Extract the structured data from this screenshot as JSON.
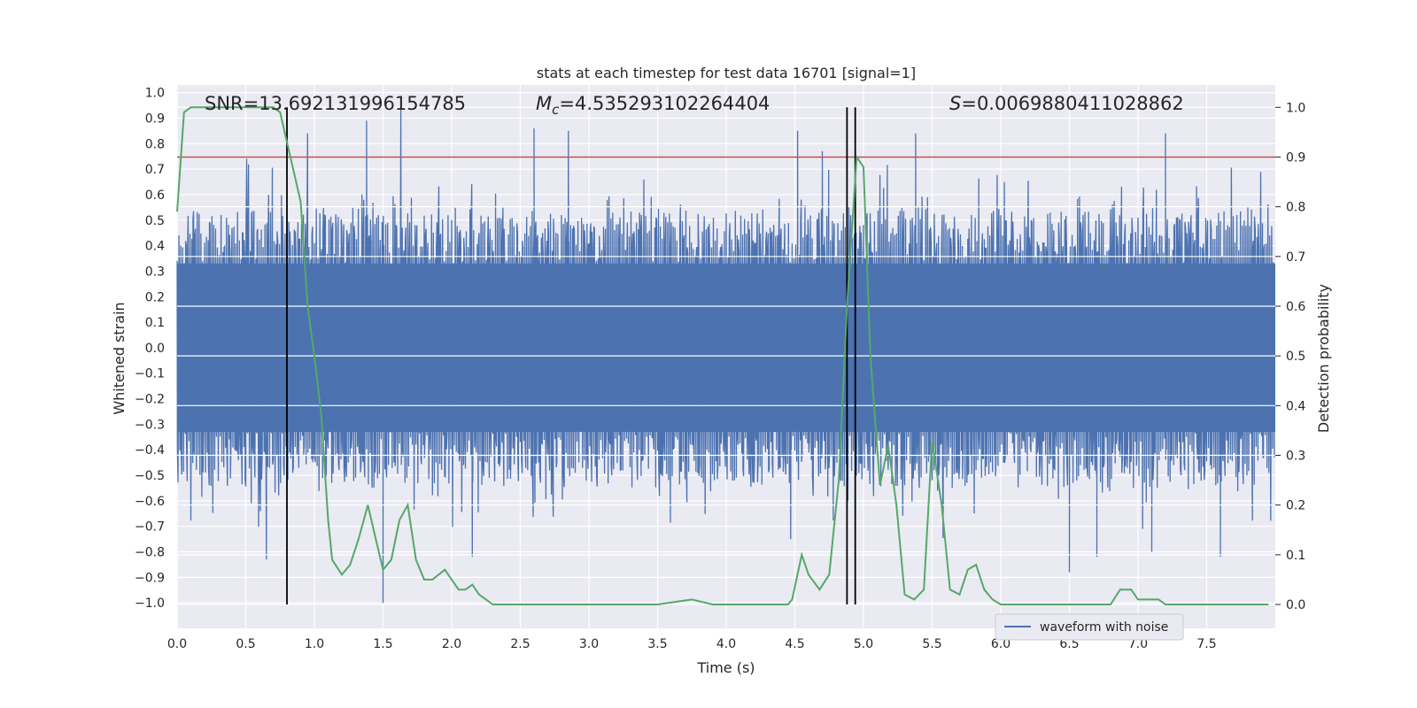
{
  "chart_data": {
    "type": "line",
    "title": "stats at each timestep for test data 16701 [signal=1]",
    "xlabel": "Time (s)",
    "ylabel": "Whitened strain",
    "y2label": "Detection probability",
    "xlim": [
      0,
      8
    ],
    "ylim": [
      -1.1,
      1.03
    ],
    "y2lim": [
      -0.048,
      1.045
    ],
    "xticks": [
      "0.0",
      "0.5",
      "1.0",
      "1.5",
      "2.0",
      "2.5",
      "3.0",
      "3.5",
      "4.0",
      "4.5",
      "5.0",
      "5.5",
      "6.0",
      "6.5",
      "7.0",
      "7.5"
    ],
    "yticks": [
      "1.0",
      "0.9",
      "0.8",
      "0.7",
      "0.6",
      "0.5",
      "0.4",
      "0.3",
      "0.2",
      "0.1",
      "0.0",
      "-0.1",
      "-0.2",
      "-0.3",
      "-0.4",
      "-0.5",
      "-0.6",
      "-0.7",
      "-0.8",
      "-0.9",
      "-1.0"
    ],
    "y2ticks": [
      "1.0",
      "0.9",
      "0.8",
      "0.7",
      "0.6",
      "0.5",
      "0.4",
      "0.3",
      "0.2",
      "0.1",
      "0.0"
    ],
    "annotations": {
      "snr": "SNR=13.692131996154785",
      "mc_prefix": "M",
      "mc_sub": "c",
      "mc_value": "=4.535293102264404",
      "s_prefix": "S",
      "s_value": "=0.0069880411028862"
    },
    "threshold": 0.9,
    "vlines": [
      0.8,
      4.88,
      4.94
    ],
    "legend": {
      "label": "waveform with noise",
      "position": "lower right"
    },
    "waveform": {
      "name": "waveform with noise",
      "samples": 1200,
      "envelope": 0.33,
      "spike_peaks_pos": [
        [
          0.95,
          0.84
        ],
        [
          1.38,
          0.89
        ],
        [
          1.63,
          0.95
        ],
        [
          2.6,
          0.86
        ],
        [
          2.85,
          0.85
        ],
        [
          4.52,
          0.85
        ],
        [
          5.38,
          0.84
        ],
        [
          7.2,
          0.84
        ],
        [
          4.7,
          0.77
        ]
      ],
      "spike_peaks_neg": [
        [
          0.65,
          -0.83
        ],
        [
          1.5,
          -1.0
        ],
        [
          2.15,
          -0.82
        ],
        [
          4.47,
          -0.75
        ],
        [
          6.5,
          -0.88
        ],
        [
          6.7,
          -0.82
        ],
        [
          7.1,
          -0.8
        ],
        [
          7.6,
          -0.82
        ]
      ]
    },
    "series": [
      {
        "name": "detection probability",
        "color": "#55a868",
        "x": [
          0.0,
          0.05,
          0.1,
          0.15,
          0.2,
          0.3,
          0.4,
          0.5,
          0.6,
          0.65,
          0.7,
          0.75,
          0.8,
          0.85,
          0.9,
          0.95,
          1.0,
          1.05,
          1.1,
          1.13,
          1.2,
          1.26,
          1.32,
          1.39,
          1.44,
          1.5,
          1.56,
          1.62,
          1.68,
          1.74,
          1.8,
          1.86,
          1.95,
          2.0,
          2.05,
          2.1,
          2.15,
          2.2,
          2.3,
          2.45,
          2.6,
          3.0,
          3.2,
          3.5,
          3.75,
          3.9,
          4.1,
          4.3,
          4.45,
          4.48,
          4.55,
          4.6,
          4.68,
          4.75,
          4.82,
          4.88,
          4.95,
          5.0,
          5.05,
          5.12,
          5.18,
          5.24,
          5.3,
          5.37,
          5.44,
          5.5,
          5.57,
          5.63,
          5.7,
          5.76,
          5.82,
          5.88,
          5.94,
          6.0,
          6.3,
          6.6,
          6.8,
          6.87,
          6.95,
          7.0,
          7.05,
          7.1,
          7.15,
          7.2,
          7.4,
          7.6,
          7.8,
          7.95
        ],
        "y": [
          0.79,
          0.99,
          1.0,
          1.0,
          1.0,
          1.0,
          1.0,
          1.0,
          1.0,
          1.0,
          1.0,
          0.99,
          0.93,
          0.87,
          0.81,
          0.6,
          0.5,
          0.38,
          0.17,
          0.09,
          0.06,
          0.08,
          0.13,
          0.2,
          0.14,
          0.07,
          0.09,
          0.17,
          0.2,
          0.09,
          0.05,
          0.05,
          0.07,
          0.05,
          0.03,
          0.03,
          0.04,
          0.02,
          0.0,
          0.0,
          0.0,
          0.0,
          0.0,
          0.0,
          0.01,
          0.0,
          0.0,
          0.0,
          0.0,
          0.01,
          0.1,
          0.06,
          0.03,
          0.06,
          0.25,
          0.6,
          0.9,
          0.88,
          0.5,
          0.24,
          0.32,
          0.2,
          0.02,
          0.01,
          0.03,
          0.33,
          0.2,
          0.03,
          0.02,
          0.07,
          0.08,
          0.03,
          0.01,
          0.0,
          0.0,
          0.0,
          0.0,
          0.03,
          0.03,
          0.01,
          0.01,
          0.01,
          0.01,
          0.0,
          0.0,
          0.0,
          0.0,
          0.0
        ]
      }
    ]
  },
  "colors": {
    "waveform": "#4c72b0",
    "probability": "#55a868",
    "threshold": "#c44e52",
    "vline": "#000000",
    "plot_bg": "#eaeaf2",
    "grid": "#ffffff"
  }
}
